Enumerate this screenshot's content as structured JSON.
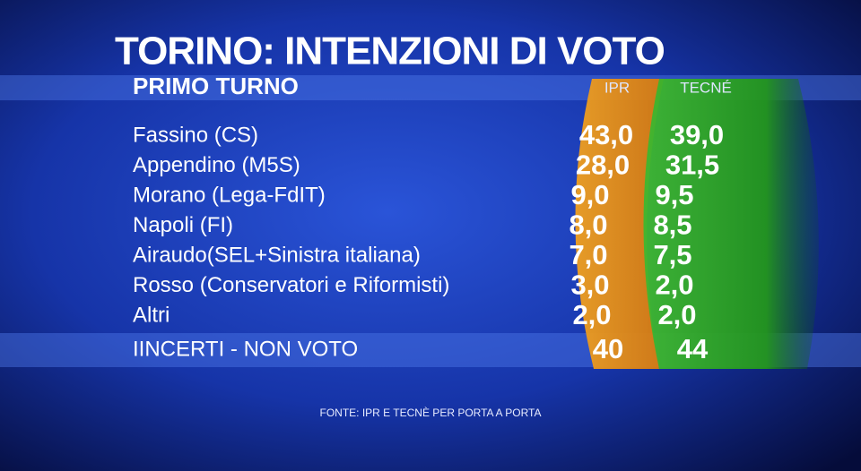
{
  "header": {
    "title": "TORINO: INTENZIONI DI VOTO",
    "subtitle": "PRIMO TURNO"
  },
  "table": {
    "columns": [
      "IPR",
      "TECNÉ"
    ],
    "rows": [
      {
        "label": "Fassino (CS)",
        "values": [
          "43,0",
          "39,0"
        ]
      },
      {
        "label": "Appendino (M5S)",
        "values": [
          "28,0",
          "31,5"
        ]
      },
      {
        "label": "Morano (Lega-FdIT)",
        "values": [
          "9,0",
          "9,5"
        ]
      },
      {
        "label": "Napoli (FI)",
        "values": [
          "8,0",
          "8,5"
        ]
      },
      {
        "label": "Airaudo(SEL+Sinistra italiana)",
        "values": [
          "7,0",
          "7,5"
        ]
      },
      {
        "label": "Rosso (Conservatori e Riformisti)",
        "values": [
          "3,0",
          "2,0"
        ]
      },
      {
        "label": "Altri",
        "values": [
          "2,0",
          "2,0"
        ]
      }
    ],
    "undecided": {
      "label": "IINCERTI - NON VOTO",
      "values": [
        "40",
        "44"
      ]
    }
  },
  "footer": {
    "source": "FONTE: IPR E TECNÈ PER PORTA A PORTA"
  }
}
